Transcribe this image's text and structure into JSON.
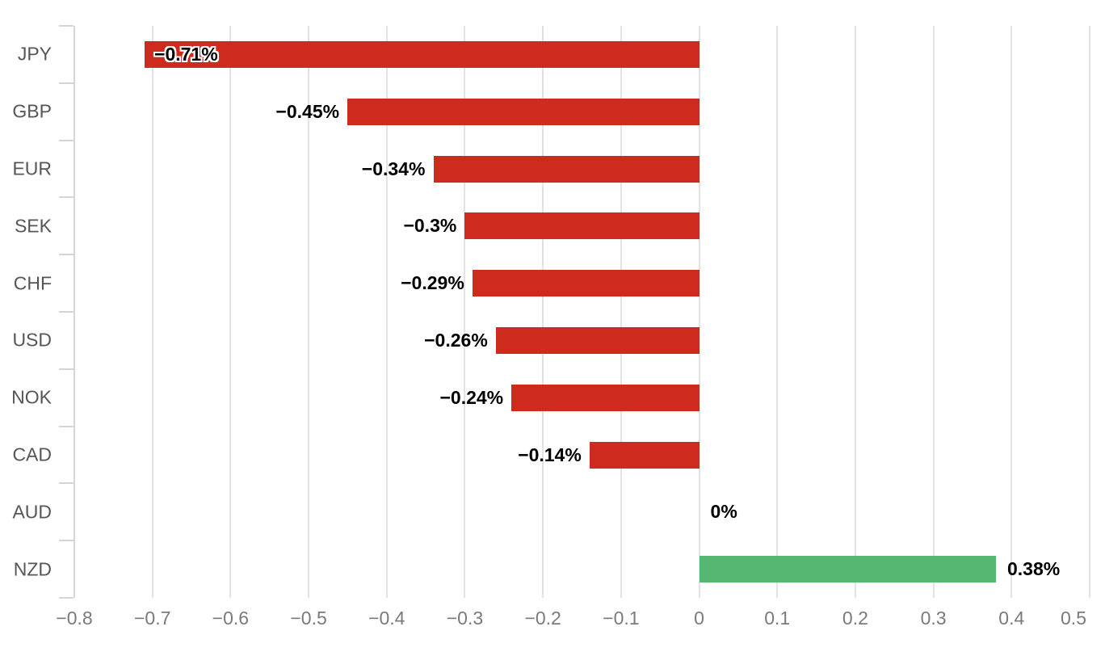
{
  "chart_data": {
    "type": "bar",
    "orientation": "horizontal",
    "title": "",
    "xlabel": "",
    "ylabel": "",
    "xlim": [
      -0.8,
      0.5
    ],
    "grid": true,
    "legend": false,
    "categories": [
      "JPY",
      "GBP",
      "EUR",
      "SEK",
      "CHF",
      "USD",
      "NOK",
      "CAD",
      "AUD",
      "NZD"
    ],
    "values": [
      -0.71,
      -0.45,
      -0.34,
      -0.3,
      -0.29,
      -0.26,
      -0.24,
      -0.14,
      0,
      0.38
    ],
    "value_labels": [
      "−0.71%",
      "−0.45%",
      "−0.34%",
      "−0.3%",
      "−0.29%",
      "−0.26%",
      "−0.24%",
      "−0.14%",
      "0%",
      "0.38%"
    ],
    "x_ticks": [
      -0.8,
      -0.7,
      -0.6,
      -0.5,
      -0.4,
      -0.3,
      -0.2,
      -0.1,
      0,
      0.1,
      0.2,
      0.3,
      0.4,
      0.5
    ],
    "x_tick_labels": [
      "−0.8",
      "−0.7",
      "−0.6",
      "−0.5",
      "−0.4",
      "−0.3",
      "−0.2",
      "−0.1",
      "0",
      "0.1",
      "0.2",
      "0.3",
      "0.4",
      "0.5"
    ],
    "colors": {
      "negative_bar": "#ce2a1e",
      "positive_bar": "#55b671",
      "gridline": "#e3e3e3",
      "axis_line": "#d5d5d5",
      "category_text": "#565656",
      "tick_text": "#7a7a7a",
      "value_text": "#000000"
    }
  }
}
